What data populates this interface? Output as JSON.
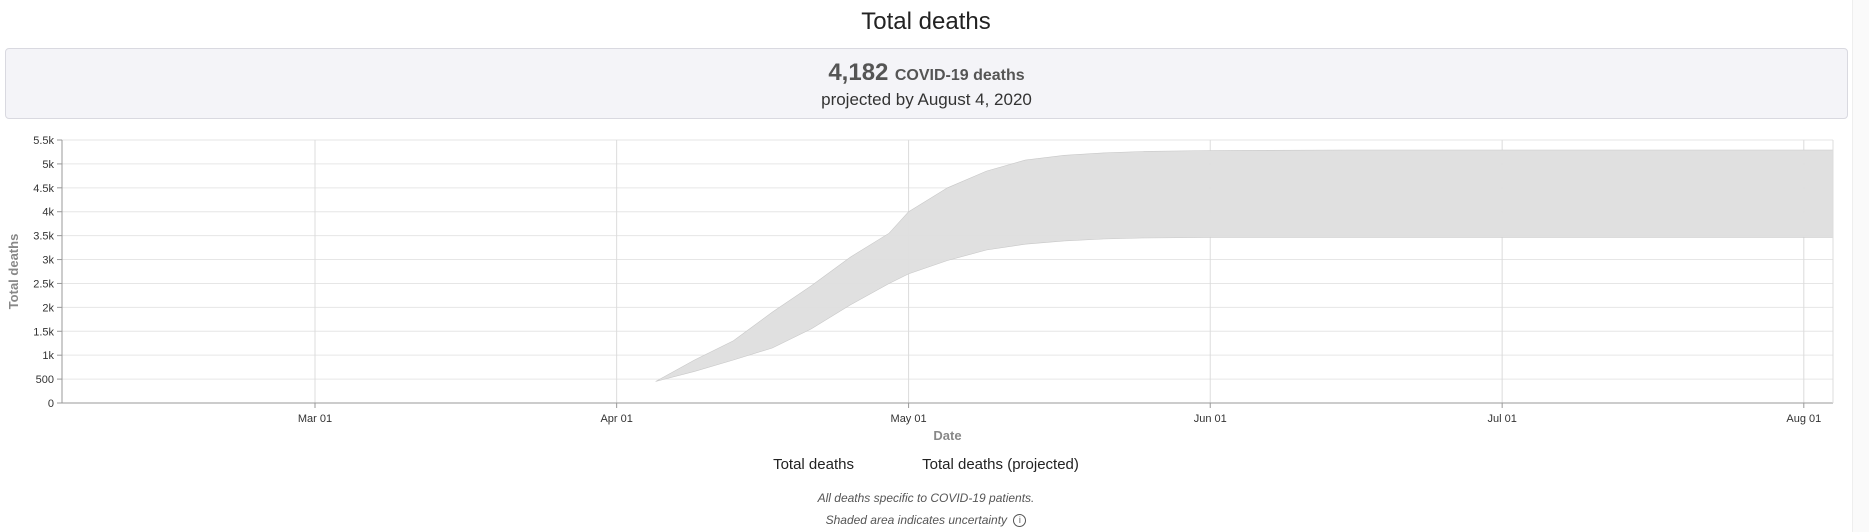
{
  "header": {
    "title": "Total deaths"
  },
  "summary": {
    "number": "4,182",
    "unit": "COVID-19 deaths",
    "projection": "projected by August 4, 2020"
  },
  "legend": {
    "items": [
      "Total deaths",
      "Total deaths (projected)"
    ]
  },
  "notes": {
    "line1": "All deaths specific to COVID-19 patients.",
    "line2": "Shaded area indicates uncertainty",
    "info_icon": "info-icon"
  },
  "colors": {
    "band": "#dedede",
    "band_stroke": "#c8c8c8",
    "grid": "#e6e6e6"
  },
  "chart_data": {
    "type": "area",
    "xlabel": "Date",
    "ylabel": "Total deaths",
    "ylim": [
      0,
      5500
    ],
    "yticks": [
      0,
      500,
      1000,
      1500,
      2000,
      2500,
      3000,
      3500,
      4000,
      4500,
      5000,
      5500
    ],
    "ytick_labels": [
      "0",
      "500",
      "1k",
      "1.5k",
      "2k",
      "2.5k",
      "3k",
      "3.5k",
      "4k",
      "4.5k",
      "5k",
      "5.5k"
    ],
    "xlim": [
      "2020-02-04",
      "2020-08-04"
    ],
    "xticks": [
      "2020-03-01",
      "2020-04-01",
      "2020-05-01",
      "2020-06-01",
      "2020-07-01",
      "2020-08-01"
    ],
    "xtick_labels": [
      "Mar 01",
      "Apr 01",
      "May 01",
      "Jun 01",
      "Jul 01",
      "Aug 01"
    ],
    "grid": true,
    "series": [
      {
        "name": "Total deaths (projected)",
        "kind": "uncertainty-band",
        "x": [
          "2020-04-05",
          "2020-04-09",
          "2020-04-13",
          "2020-04-17",
          "2020-04-21",
          "2020-04-25",
          "2020-04-29",
          "2020-05-01",
          "2020-05-05",
          "2020-05-09",
          "2020-05-13",
          "2020-05-17",
          "2020-05-21",
          "2020-05-25",
          "2020-06-01",
          "2020-06-15",
          "2020-07-01",
          "2020-07-15",
          "2020-08-04"
        ],
        "lower": [
          450,
          660,
          900,
          1150,
          1550,
          2050,
          2500,
          2700,
          2980,
          3200,
          3320,
          3390,
          3430,
          3450,
          3460,
          3460,
          3460,
          3460,
          3460
        ],
        "upper": [
          450,
          900,
          1300,
          1900,
          2450,
          3050,
          3550,
          4000,
          4500,
          4850,
          5080,
          5180,
          5230,
          5260,
          5280,
          5290,
          5290,
          5290,
          5290
        ]
      }
    ]
  }
}
